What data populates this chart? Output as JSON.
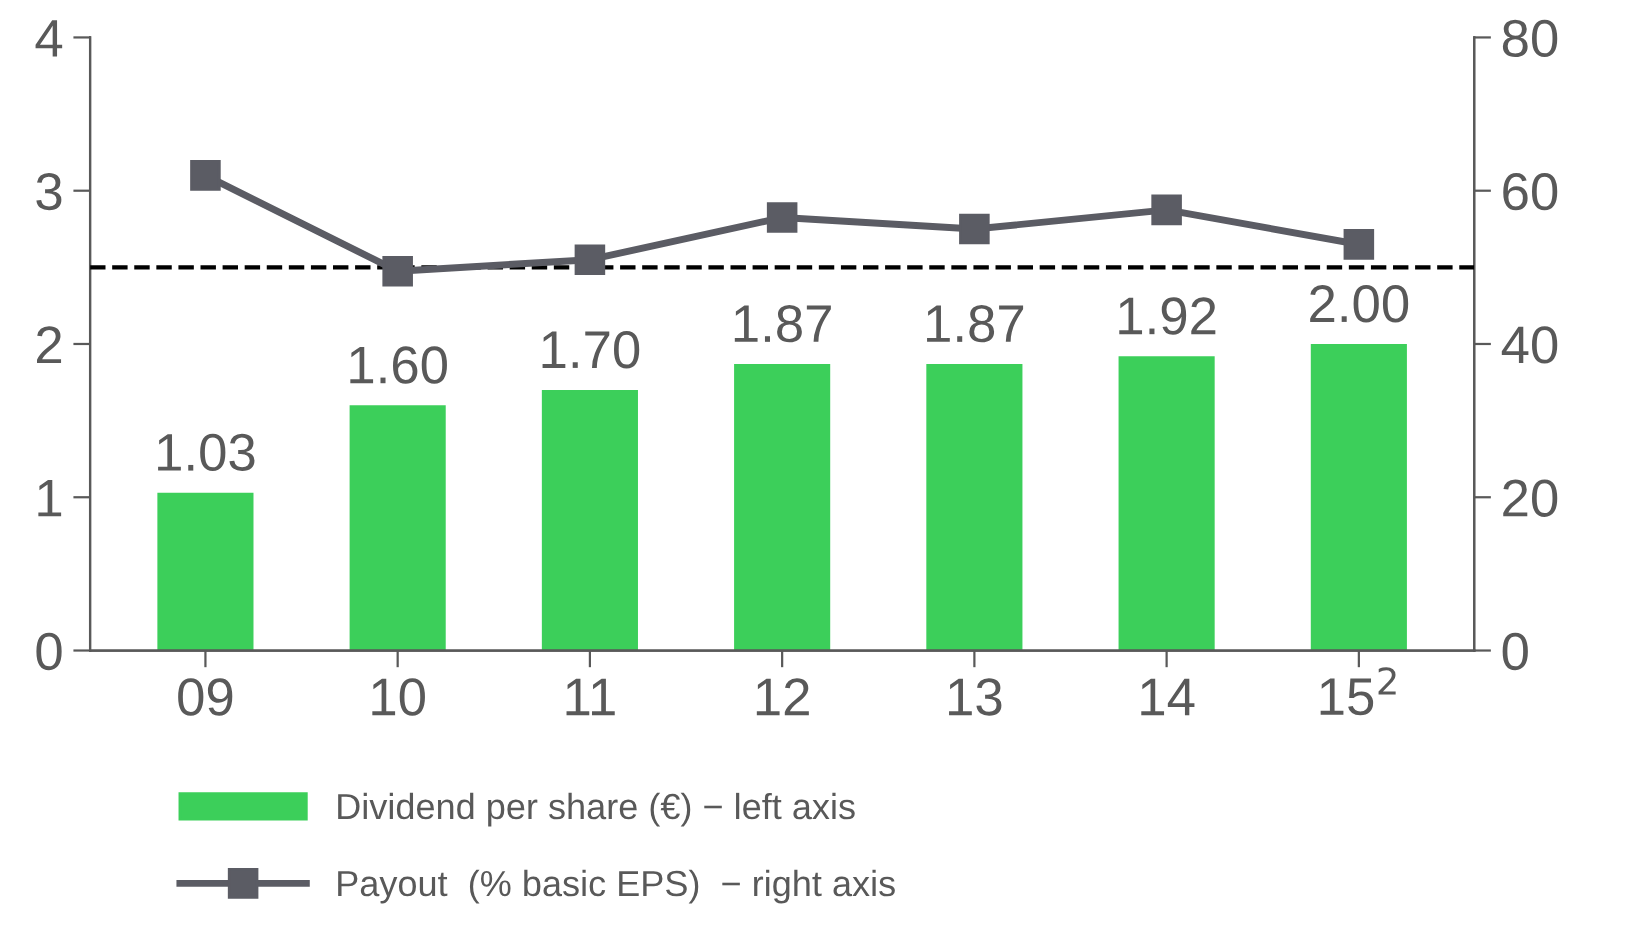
{
  "chart_data": {
    "type": "bar",
    "categories": [
      "09",
      "10",
      "11",
      "12",
      "13",
      "14",
      "15$^{2}$"
    ],
    "series": [
      {
        "name": "Dividend per share (€) − left axis",
        "color": "#3ccf5a",
        "values": [
          1.03,
          1.6,
          1.7,
          1.87,
          1.87,
          1.92,
          2.0
        ],
        "value_labels": [
          "1.03",
          "1.60",
          "1.70",
          "1.87",
          "1.87",
          "1.92",
          "2.00"
        ]
      },
      {
        "name": "Payout  (% basic EPS)  − right axis",
        "type": "line",
        "axis": "y2",
        "color": "#5b5c64",
        "marker": "square",
        "values": [
          62,
          49.5,
          51,
          56.5,
          55,
          57.5,
          53
        ]
      }
    ],
    "ylim": [
      0,
      4
    ],
    "yticks": [
      0,
      1,
      2,
      3,
      4
    ],
    "y2lim": [
      0,
      80
    ],
    "y2ticks": [
      0,
      20,
      40,
      60,
      80
    ],
    "ref_lines": [
      {
        "axis": "y2",
        "value": 50,
        "color": "#000000",
        "line_style": "dashed"
      }
    ],
    "grid": false,
    "legend": "bottom left"
  }
}
